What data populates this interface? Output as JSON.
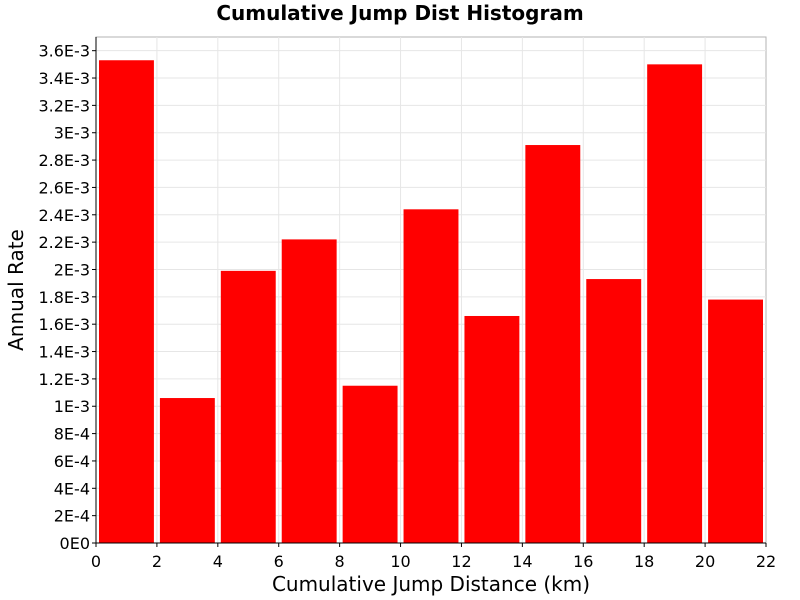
{
  "chart_data": {
    "type": "bar",
    "title": "Cumulative Jump Dist Histogram",
    "xlabel": "Cumulative Jump Distance (km)",
    "ylabel": "Annual Rate",
    "xlim": [
      0,
      22
    ],
    "ylim": [
      0,
      0.0037
    ],
    "bar_width": 2,
    "bar_color": "#ff0000",
    "grid": true,
    "x_ticks": [
      "0",
      "2",
      "4",
      "6",
      "8",
      "10",
      "12",
      "14",
      "16",
      "18",
      "20",
      "22"
    ],
    "x_tick_values": [
      0,
      2,
      4,
      6,
      8,
      10,
      12,
      14,
      16,
      18,
      20,
      22
    ],
    "y_ticks": [
      "0E0",
      "2E-4",
      "4E-4",
      "6E-4",
      "8E-4",
      "1E-3",
      "1.2E-3",
      "1.4E-3",
      "1.6E-3",
      "1.8E-3",
      "2E-3",
      "2.2E-3",
      "2.4E-3",
      "2.6E-3",
      "2.8E-3",
      "3E-3",
      "3.2E-3",
      "3.4E-3",
      "3.6E-3"
    ],
    "y_tick_values": [
      0,
      0.0002,
      0.0004,
      0.0006,
      0.0008,
      0.001,
      0.0012,
      0.0014,
      0.0016,
      0.0018,
      0.002,
      0.0022,
      0.0024,
      0.0026,
      0.0028,
      0.003,
      0.0032,
      0.0034,
      0.0036
    ],
    "x": [
      1,
      3,
      5,
      7,
      9,
      11,
      13,
      15,
      17,
      19,
      21
    ],
    "values": [
      0.00353,
      0.00106,
      0.00199,
      0.00222,
      0.00115,
      0.00244,
      0.00166,
      0.00291,
      0.00193,
      0.0035,
      0.00178
    ]
  }
}
